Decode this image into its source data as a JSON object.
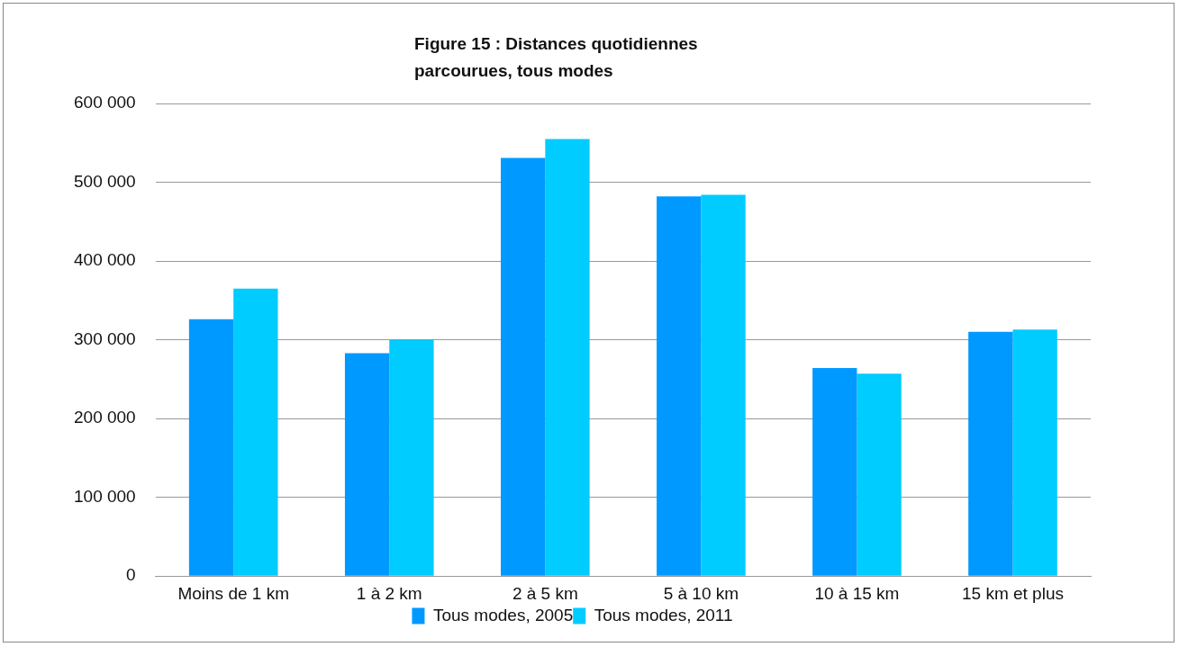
{
  "chart_data": {
    "type": "bar",
    "title": "Figure 15 : Distances quotidiennes\nparcourues, tous modes",
    "categories": [
      "Moins de 1 km",
      "1 à 2 km",
      "2 à 5 km",
      "5 à 10 km",
      "10 à 15 km",
      "15 km et plus"
    ],
    "series": [
      {
        "name": "Tous modes, 2005",
        "color": "#0099ff",
        "values": [
          326000,
          283000,
          531000,
          482000,
          264000,
          310000
        ]
      },
      {
        "name": "Tous modes, 2011",
        "color": "#00ccff",
        "values": [
          365000,
          300000,
          555000,
          484000,
          257000,
          313000
        ]
      }
    ],
    "ylim": [
      0,
      600000
    ],
    "yticks": [
      {
        "value": 0,
        "label": "0"
      },
      {
        "value": 100000,
        "label": "100 000"
      },
      {
        "value": 200000,
        "label": "200 000"
      },
      {
        "value": 300000,
        "label": "300 000"
      },
      {
        "value": 400000,
        "label": "400 000"
      },
      {
        "value": 500000,
        "label": "500 000"
      },
      {
        "value": 600000,
        "label": "600 000"
      }
    ],
    "grid": "y",
    "legend": "bottom"
  }
}
